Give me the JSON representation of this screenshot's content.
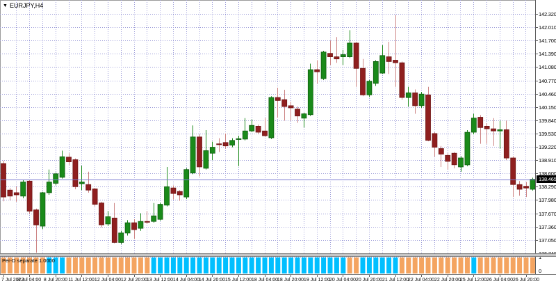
{
  "window": {
    "dropdown_glyph": "▼",
    "symbol_label": "EURJPY,H4"
  },
  "colors": {
    "background": "#ffffff",
    "grid": "#9d9dd9",
    "up_body": "#1a8a1a",
    "up_border": "#0f5c0f",
    "up_wick": "#1a8a1a",
    "down_body": "#8f1f1f",
    "down_border": "#6e1515",
    "down_wick": "#cd8484",
    "price_line": "#7a7ad0",
    "price_badge_bg": "#000000",
    "price_badge_text": "#ffffff",
    "axis_text": "#000000",
    "orange": "#F4A460",
    "blue": "#00BFFF",
    "separator": "#c6c6c6"
  },
  "chart_data": {
    "type": "candlestick",
    "symbol": "EURJPY",
    "timeframe": "H4",
    "title": "EURJPY,H4",
    "grid": true,
    "ylim": [
      136.66,
      142.41
    ],
    "price_axis": {
      "top": 142.32,
      "step": 0.31,
      "labels": [
        "142.320",
        "142.010",
        "141.700",
        "141.390",
        "141.080",
        "140.770",
        "140.460",
        "140.150",
        "139.840",
        "139.530",
        "139.220",
        "138.910",
        "138.600",
        "138.290",
        "137.980",
        "137.670",
        "137.360",
        "137.050",
        "136.740"
      ],
      "current_price": 138.465,
      "current_price_label": "138.465"
    },
    "time_axis": {
      "labels": [
        "7 Jul 2022",
        "8 Jul 04:00",
        "8 Jul 20:00",
        "11 Jul 12:00",
        "12 Jul 04:00",
        "12 Jul 20:00",
        "13 Jul 12:00",
        "14 Jul 04:00",
        "14 Jul 20:00",
        "15 Jul 12:00",
        "18 Jul 04:00",
        "18 Jul 20:00",
        "19 Jul 12:00",
        "20 Jul 04:00",
        "20 Jul 20:00",
        "21 Jul 12:00",
        "22 Jul 04:00",
        "22 Jul 20:00",
        "25 Jul 12:00",
        "26 Jul 04:00",
        "26 Jul 20:00"
      ],
      "bars_per_label": 4
    },
    "candles_ohlc": [
      [
        138.83,
        138.9,
        137.95,
        138.05
      ],
      [
        138.21,
        138.26,
        137.97,
        138.07
      ],
      [
        138.15,
        138.29,
        137.94,
        138.1
      ],
      [
        138.07,
        138.45,
        138.02,
        138.4
      ],
      [
        138.42,
        138.45,
        137.66,
        137.72
      ],
      [
        137.75,
        137.78,
        136.75,
        137.4
      ],
      [
        137.37,
        138.17,
        137.3,
        138.15
      ],
      [
        138.15,
        138.69,
        138.1,
        138.4
      ],
      [
        138.37,
        138.62,
        138.32,
        138.59
      ],
      [
        138.51,
        139.13,
        138.48,
        138.99
      ],
      [
        138.98,
        139.07,
        138.8,
        138.87
      ],
      [
        138.92,
        138.95,
        138.23,
        138.29
      ],
      [
        138.36,
        138.78,
        138.21,
        138.4
      ],
      [
        138.34,
        138.64,
        138.15,
        138.21
      ],
      [
        138.24,
        138.26,
        137.83,
        137.88
      ],
      [
        137.91,
        137.94,
        137.34,
        137.4
      ],
      [
        137.42,
        137.72,
        137.37,
        137.59
      ],
      [
        137.56,
        137.91,
        136.97,
        136.99
      ],
      [
        136.99,
        137.26,
        136.95,
        137.21
      ],
      [
        137.21,
        137.51,
        137.15,
        137.45
      ],
      [
        137.45,
        137.53,
        137.07,
        137.29
      ],
      [
        137.32,
        137.67,
        137.26,
        137.48
      ],
      [
        137.48,
        137.72,
        137.42,
        137.47
      ],
      [
        137.48,
        137.91,
        137.45,
        137.61
      ],
      [
        137.53,
        137.92,
        137.5,
        137.88
      ],
      [
        137.86,
        138.75,
        137.83,
        138.29
      ],
      [
        138.26,
        138.32,
        137.99,
        138.13
      ],
      [
        138.18,
        138.21,
        137.96,
        138.1
      ],
      [
        138.05,
        138.72,
        138.0,
        138.69
      ],
      [
        138.61,
        139.72,
        138.58,
        139.45
      ],
      [
        139.45,
        139.51,
        138.53,
        138.75
      ],
      [
        138.72,
        139.61,
        138.69,
        139.13
      ],
      [
        139.07,
        139.34,
        138.91,
        139.21
      ],
      [
        139.29,
        139.42,
        139.1,
        139.28
      ],
      [
        139.32,
        139.53,
        139.18,
        139.24
      ],
      [
        139.26,
        139.42,
        139.21,
        139.37
      ],
      [
        139.4,
        139.48,
        138.77,
        139.41
      ],
      [
        139.4,
        139.89,
        139.37,
        139.59
      ],
      [
        139.59,
        139.86,
        139.56,
        139.72
      ],
      [
        139.7,
        139.74,
        139.52,
        139.56
      ],
      [
        139.59,
        139.89,
        139.45,
        139.48
      ],
      [
        139.43,
        140.4,
        139.4,
        140.37
      ],
      [
        140.37,
        140.6,
        139.9,
        140.3
      ],
      [
        140.32,
        140.55,
        139.83,
        140.16
      ],
      [
        140.18,
        140.27,
        139.83,
        140.13
      ],
      [
        140.1,
        140.16,
        139.78,
        139.94
      ],
      [
        139.89,
        140.02,
        139.67,
        139.99
      ],
      [
        139.97,
        141.16,
        139.94,
        141.02
      ],
      [
        141.02,
        141.24,
        140.7,
        140.97
      ],
      [
        140.81,
        141.46,
        140.78,
        141.43
      ],
      [
        141.4,
        141.7,
        141.13,
        141.32
      ],
      [
        141.32,
        141.78,
        141.18,
        141.27
      ],
      [
        141.32,
        141.48,
        141.13,
        141.37
      ],
      [
        141.32,
        141.94,
        141.29,
        141.64
      ],
      [
        141.64,
        141.67,
        140.62,
        141.05
      ],
      [
        141.05,
        141.27,
        140.4,
        140.43
      ],
      [
        140.43,
        140.78,
        140.38,
        140.75
      ],
      [
        140.7,
        141.24,
        140.64,
        141.21
      ],
      [
        140.94,
        141.59,
        140.92,
        141.35
      ],
      [
        141.32,
        141.67,
        140.92,
        141.21
      ],
      [
        141.24,
        142.29,
        140.62,
        141.18
      ],
      [
        141.18,
        141.21,
        140.32,
        140.37
      ],
      [
        140.37,
        140.62,
        140.16,
        140.48
      ],
      [
        140.48,
        140.56,
        139.99,
        140.18
      ],
      [
        140.18,
        140.5,
        140.13,
        140.45
      ],
      [
        140.43,
        140.62,
        139.35,
        139.37
      ],
      [
        139.53,
        139.56,
        138.99,
        139.21
      ],
      [
        139.18,
        139.24,
        138.75,
        139.05
      ],
      [
        139.02,
        139.07,
        138.69,
        138.88
      ],
      [
        139.07,
        139.1,
        138.72,
        138.8
      ],
      [
        138.75,
        139.0,
        138.64,
        138.96
      ],
      [
        138.8,
        139.61,
        138.77,
        139.56
      ],
      [
        139.56,
        139.99,
        139.51,
        139.89
      ],
      [
        139.91,
        139.96,
        139.29,
        139.67
      ],
      [
        139.7,
        139.77,
        139.29,
        139.64
      ],
      [
        139.64,
        139.89,
        139.24,
        139.59
      ],
      [
        139.59,
        139.83,
        139.18,
        139.62
      ],
      [
        139.62,
        139.83,
        138.91,
        138.96
      ],
      [
        138.96,
        139.0,
        138.05,
        138.34
      ],
      [
        138.34,
        138.42,
        138.08,
        138.23
      ],
      [
        138.3,
        138.4,
        138.05,
        138.26
      ],
      [
        138.23,
        138.5,
        138.2,
        138.465
      ]
    ],
    "indicator": {
      "name_label": "Per-D separate 1.0000",
      "value": 1.0,
      "scale_top": "1",
      "scale_bottom": "0",
      "color_segments": [
        {
          "color": "orange",
          "count": 7
        },
        {
          "color": "blue",
          "count": 3
        },
        {
          "color": "orange",
          "count": 13
        },
        {
          "color": "blue",
          "count": 30
        },
        {
          "color": "orange",
          "count": 2
        },
        {
          "color": "blue",
          "count": 6
        },
        {
          "color": "orange",
          "count": 11
        },
        {
          "color": "blue",
          "count": 1
        },
        {
          "color": "orange",
          "count": 9
        }
      ]
    }
  }
}
